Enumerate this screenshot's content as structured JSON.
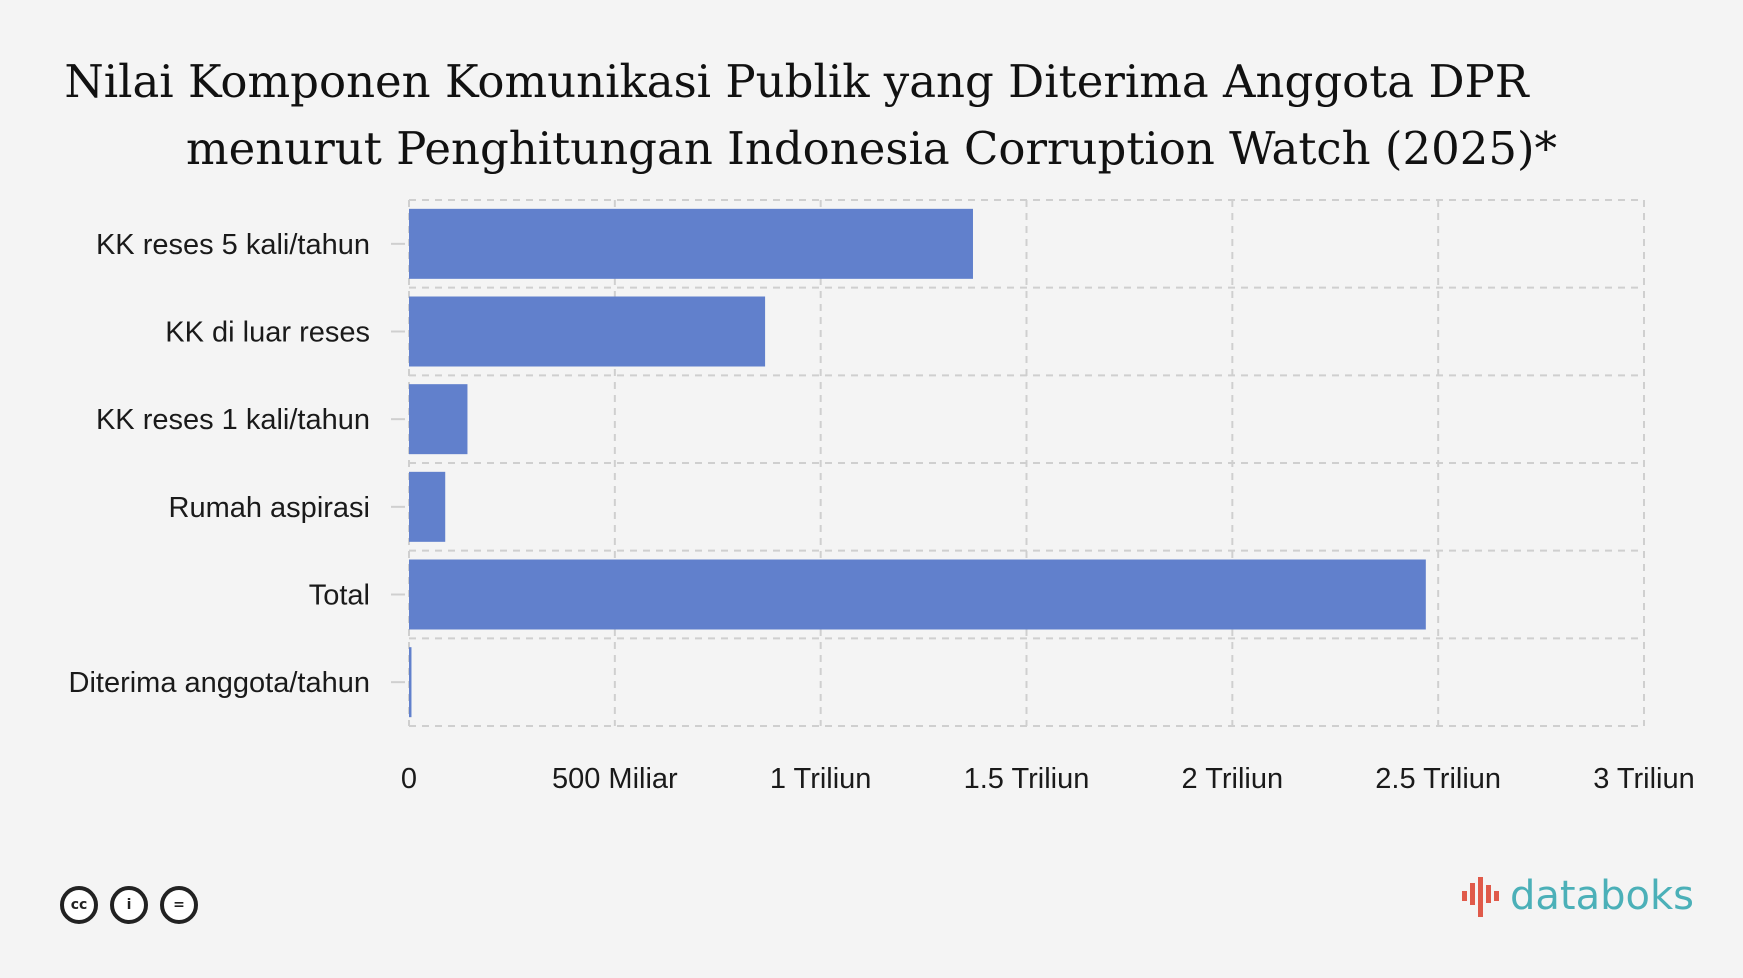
{
  "title": {
    "line1": "Nilai Komponen Komunikasi Publik yang Diterima Anggota DPR",
    "line2": "menurut Penghitungan Indonesia Corruption Watch (2025)*"
  },
  "chart_data": {
    "type": "bar",
    "orientation": "horizontal",
    "categories": [
      "KK reses 5 kali/tahun",
      "KK di luar reses",
      "KK reses 1 kali/tahun",
      "Rumah aspirasi",
      "Total",
      "Diterima anggota/tahun"
    ],
    "values": [
      1370,
      865,
      142,
      88,
      2470,
      6
    ],
    "unit_note": "values in Miliar (billions)",
    "xlim": [
      0,
      3000
    ],
    "x_ticks": [
      0,
      500,
      1000,
      1500,
      2000,
      2500,
      3000
    ],
    "x_tick_labels": [
      "0",
      "500 Miliar",
      "1 Triliun",
      "1.5 Triliun",
      "2 Triliun",
      "2.5 Triliun",
      "3 Triliun"
    ],
    "bar_color": "#6180cc",
    "grid": true,
    "grid_style": "dashed"
  },
  "footer": {
    "license_icons": [
      "cc-icon",
      "by-icon",
      "nd-icon"
    ],
    "license_glyphs": [
      "cc",
      "i",
      "="
    ],
    "brand": "databoks",
    "brand_color": "#4bb0b8",
    "brand_accent": "#e05a4a"
  }
}
